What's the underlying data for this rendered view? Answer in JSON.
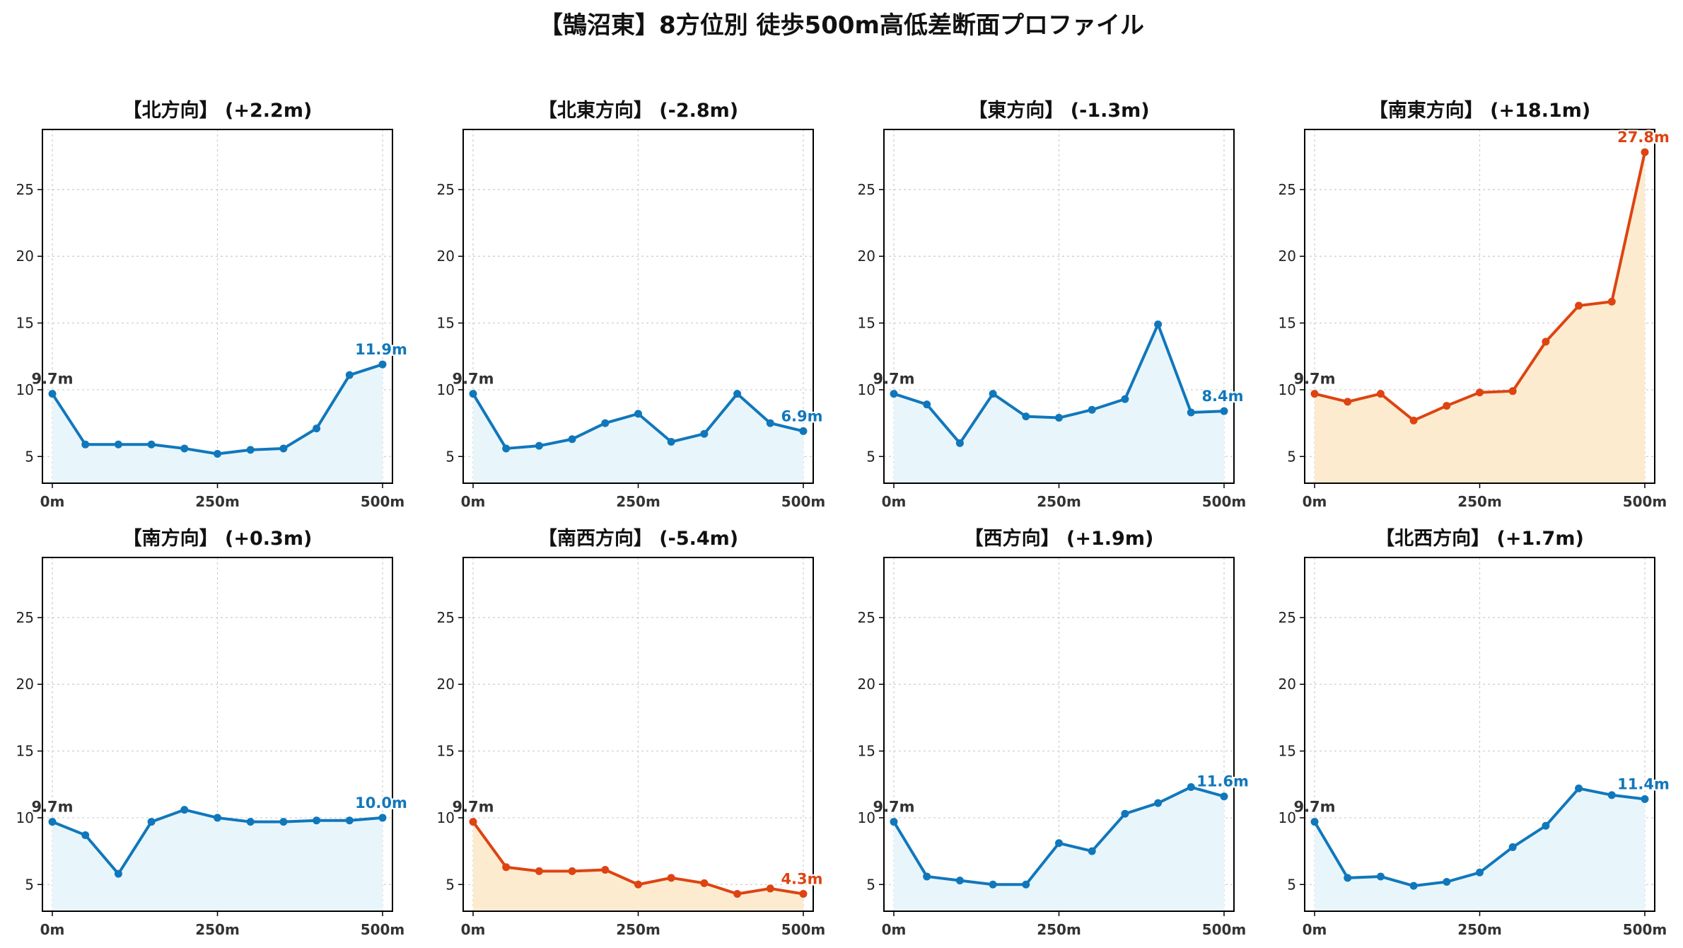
{
  "figure_title": "【鵠沼東】8方位別 徒歩500m高低差断面プロファイル",
  "colors": {
    "up": "#1177bb",
    "up_fill": "#e8f6fc",
    "down": "#dd4411",
    "down_fill": "#fdebd0",
    "start_label": "#333333",
    "axis": "#000000",
    "grid": "#cccccc"
  },
  "chart_data": [
    {
      "type": "line",
      "title": "【北方向】 (+2.2m)",
      "trend": "normal",
      "x": [
        0,
        50,
        100,
        150,
        200,
        250,
        300,
        350,
        400,
        450,
        500
      ],
      "values": [
        9.7,
        5.9,
        5.9,
        5.9,
        5.6,
        5.2,
        5.5,
        5.6,
        7.1,
        11.1,
        11.9
      ],
      "xticks": [
        "0m",
        "250m",
        "500m"
      ],
      "yticks": [
        "5",
        "10",
        "15",
        "20",
        "25"
      ],
      "ylim": [
        3,
        29.5
      ],
      "xlim": [
        -15,
        515
      ],
      "grid": true,
      "start_label": "9.7m",
      "end_label": "11.9m"
    },
    {
      "type": "line",
      "title": "【北東方向】 (-2.8m)",
      "trend": "normal",
      "x": [
        0,
        50,
        100,
        150,
        200,
        250,
        300,
        350,
        400,
        450,
        500
      ],
      "values": [
        9.7,
        5.6,
        5.8,
        6.3,
        7.5,
        8.2,
        6.1,
        6.7,
        9.7,
        7.5,
        6.9
      ],
      "xticks": [
        "0m",
        "250m",
        "500m"
      ],
      "yticks": [
        "5",
        "10",
        "15",
        "20",
        "25"
      ],
      "ylim": [
        3,
        29.5
      ],
      "xlim": [
        -15,
        515
      ],
      "grid": true,
      "start_label": "9.7m",
      "end_label": "6.9m"
    },
    {
      "type": "line",
      "title": "【東方向】 (-1.3m)",
      "trend": "normal",
      "x": [
        0,
        50,
        100,
        150,
        200,
        250,
        300,
        350,
        400,
        450,
        500
      ],
      "values": [
        9.7,
        8.9,
        6.0,
        9.7,
        8.0,
        7.9,
        8.5,
        9.3,
        14.9,
        8.3,
        8.4
      ],
      "xticks": [
        "0m",
        "250m",
        "500m"
      ],
      "yticks": [
        "5",
        "10",
        "15",
        "20",
        "25"
      ],
      "ylim": [
        3,
        29.5
      ],
      "xlim": [
        -15,
        515
      ],
      "grid": true,
      "start_label": "9.7m",
      "end_label": "8.4m"
    },
    {
      "type": "line",
      "title": "【南東方向】 (+18.1m)",
      "trend": "highlight",
      "x": [
        0,
        50,
        100,
        150,
        200,
        250,
        300,
        350,
        400,
        450,
        500
      ],
      "values": [
        9.7,
        9.1,
        9.7,
        7.7,
        8.8,
        9.8,
        9.9,
        13.6,
        16.3,
        16.6,
        27.8
      ],
      "xticks": [
        "0m",
        "250m",
        "500m"
      ],
      "yticks": [
        "5",
        "10",
        "15",
        "20",
        "25"
      ],
      "ylim": [
        3,
        29.5
      ],
      "xlim": [
        -15,
        515
      ],
      "grid": true,
      "start_label": "9.7m",
      "end_label": "27.8m"
    },
    {
      "type": "line",
      "title": "【南方向】 (+0.3m)",
      "trend": "normal",
      "x": [
        0,
        50,
        100,
        150,
        200,
        250,
        300,
        350,
        400,
        450,
        500
      ],
      "values": [
        9.7,
        8.7,
        5.8,
        9.7,
        10.6,
        10.0,
        9.7,
        9.7,
        9.8,
        9.8,
        10.0
      ],
      "xticks": [
        "0m",
        "250m",
        "500m"
      ],
      "yticks": [
        "5",
        "10",
        "15",
        "20",
        "25"
      ],
      "ylim": [
        3,
        29.5
      ],
      "xlim": [
        -15,
        515
      ],
      "grid": true,
      "start_label": "9.7m",
      "end_label": "10.0m"
    },
    {
      "type": "line",
      "title": "【南西方向】 (-5.4m)",
      "trend": "highlight",
      "x": [
        0,
        50,
        100,
        150,
        200,
        250,
        300,
        350,
        400,
        450,
        500
      ],
      "values": [
        9.7,
        6.3,
        6.0,
        6.0,
        6.1,
        5.0,
        5.5,
        5.1,
        4.3,
        4.7,
        4.3
      ],
      "xticks": [
        "0m",
        "250m",
        "500m"
      ],
      "yticks": [
        "5",
        "10",
        "15",
        "20",
        "25"
      ],
      "ylim": [
        3,
        29.5
      ],
      "xlim": [
        -15,
        515
      ],
      "grid": true,
      "start_label": "9.7m",
      "end_label": "4.3m"
    },
    {
      "type": "line",
      "title": "【西方向】 (+1.9m)",
      "trend": "normal",
      "x": [
        0,
        50,
        100,
        150,
        200,
        250,
        300,
        350,
        400,
        450,
        500
      ],
      "values": [
        9.7,
        5.6,
        5.3,
        5.0,
        5.0,
        8.1,
        7.5,
        10.3,
        11.1,
        12.3,
        11.6
      ],
      "xticks": [
        "0m",
        "250m",
        "500m"
      ],
      "yticks": [
        "5",
        "10",
        "15",
        "20",
        "25"
      ],
      "ylim": [
        3,
        29.5
      ],
      "xlim": [
        -15,
        515
      ],
      "grid": true,
      "start_label": "9.7m",
      "end_label": "11.6m"
    },
    {
      "type": "line",
      "title": "【北西方向】 (+1.7m)",
      "trend": "normal",
      "x": [
        0,
        50,
        100,
        150,
        200,
        250,
        300,
        350,
        400,
        450,
        500
      ],
      "values": [
        9.7,
        5.5,
        5.6,
        4.9,
        5.2,
        5.9,
        7.8,
        9.4,
        12.2,
        11.7,
        11.4
      ],
      "xticks": [
        "0m",
        "250m",
        "500m"
      ],
      "yticks": [
        "5",
        "10",
        "15",
        "20",
        "25"
      ],
      "ylim": [
        3,
        29.5
      ],
      "xlim": [
        -15,
        515
      ],
      "grid": true,
      "start_label": "9.7m",
      "end_label": "11.4m"
    }
  ]
}
